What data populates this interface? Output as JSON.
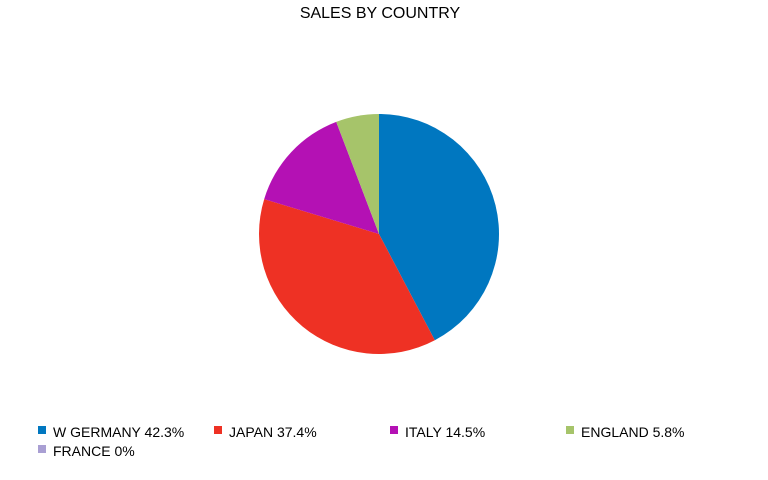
{
  "chart_data": {
    "type": "pie",
    "title": "SALES BY COUNTRY",
    "categories": [
      "W GERMANY",
      "JAPAN",
      "ITALY",
      "ENGLAND",
      "FRANCE"
    ],
    "values": [
      42.3,
      37.4,
      14.5,
      5.8,
      0
    ],
    "legend_labels": [
      "W GERMANY 42.3%",
      "JAPAN 37.4%",
      "ITALY 14.5%",
      "ENGLAND 5.8%",
      "FRANCE 0%"
    ],
    "colors": [
      "#0077c0",
      "#ee3124",
      "#b411b4",
      "#a6c46a",
      "#a99fd3"
    ],
    "legend_position": "bottom"
  }
}
